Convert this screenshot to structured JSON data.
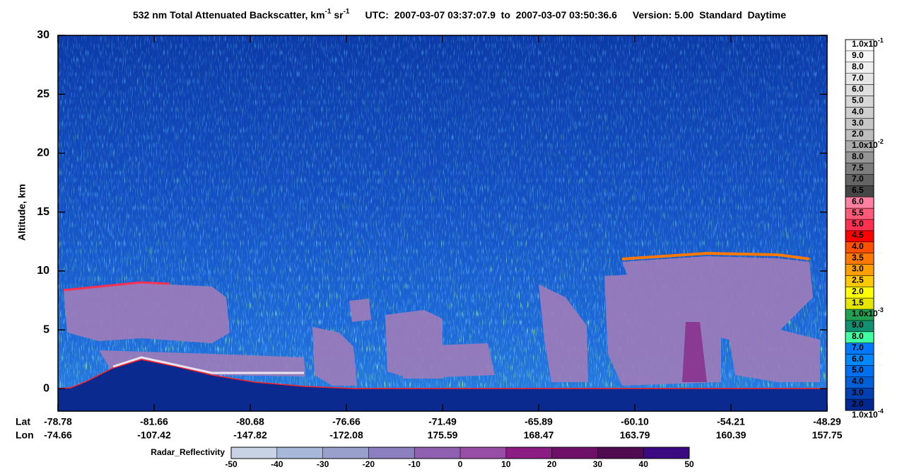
{
  "chart_data": {
    "type": "curtain",
    "title_parts": [
      {
        "text": "532 nm Total Attenuated Backscatter, km",
        "sup": false
      },
      {
        "text": "-1",
        "sup": true
      },
      {
        "text": " sr",
        "sup": false
      },
      {
        "text": "-1",
        "sup": true
      }
    ],
    "subtitle": "UTC:  2007-03-07 03:37:07.9  to  2007-03-07 03:50:36.6",
    "version": "Version: 5.00  Standard  Daytime",
    "ylabel": "Altitude, km",
    "ylim": [
      -1.9,
      30
    ],
    "yticks": [
      0,
      5,
      10,
      15,
      20,
      25,
      30
    ],
    "x_rows": [
      {
        "label": "Lat",
        "ticks": [
          "-78.78",
          "-81.66",
          "-80.68",
          "-76.66",
          "-71.49",
          "-65.89",
          "-60.10",
          "-54.21",
          "-48.29"
        ]
      },
      {
        "label": "Lon",
        "ticks": [
          "-74.66",
          "-107.42",
          "-147.82",
          "-172.08",
          "175.59",
          "168.47",
          "163.79",
          "160.39",
          "157.75"
        ]
      }
    ],
    "colorbar": {
      "levels": [
        {
          "base": "1.0x10",
          "exp": "-1"
        },
        "9.0",
        "8.0",
        "7.0",
        "6.0",
        "5.0",
        "4.0",
        "3.0",
        "2.0",
        {
          "base": "1.0x10",
          "exp": "-2"
        },
        "8.0",
        "7.5",
        "7.0",
        "6.5",
        "6.0",
        "5.5",
        "5.0",
        "4.5",
        "4.0",
        "3.5",
        "3.0",
        "2.5",
        "2.0",
        "1.5",
        {
          "base": "1.0x10",
          "exp": "-3"
        },
        "9.0",
        "8.0",
        "7.0",
        "6.0",
        "5.0",
        "4.0",
        "3.0",
        "2.0",
        {
          "base": "1.0x10",
          "exp": "-4"
        }
      ],
      "colors": [
        "#ffffff",
        "#f7f7f7",
        "#efefef",
        "#e7e7e7",
        "#dfdfdf",
        "#d7d7d7",
        "#cfcfcf",
        "#c7c7c7",
        "#bdbdbd",
        "#aaaaaa",
        "#969696",
        "#7d7d7d",
        "#646464",
        "#464646",
        "#ff80a0",
        "#ff5a78",
        "#ff3050",
        "#ff0000",
        "#ff5000",
        "#ff7800",
        "#ffa000",
        "#ffc800",
        "#ffff00",
        "#e6e600",
        "#20a050",
        "#109070",
        "#40ffa0",
        "#0078ff",
        "#0088ff",
        "#0070f0",
        "#0060d8",
        "#0040b0",
        "#002890"
      ]
    },
    "radar_colorbar": {
      "label": "Radar_Reflectivity",
      "ticks": [
        -50,
        -40,
        -30,
        -20,
        -10,
        0,
        10,
        20,
        30,
        40,
        50
      ],
      "colors": [
        "#c8d4e6",
        "#a8b8d8",
        "#9aa0cc",
        "#8c80c0",
        "#9060b0",
        "#984ea4",
        "#8a1c84",
        "#6e1068",
        "#500a50",
        "#3c0a80"
      ]
    }
  }
}
